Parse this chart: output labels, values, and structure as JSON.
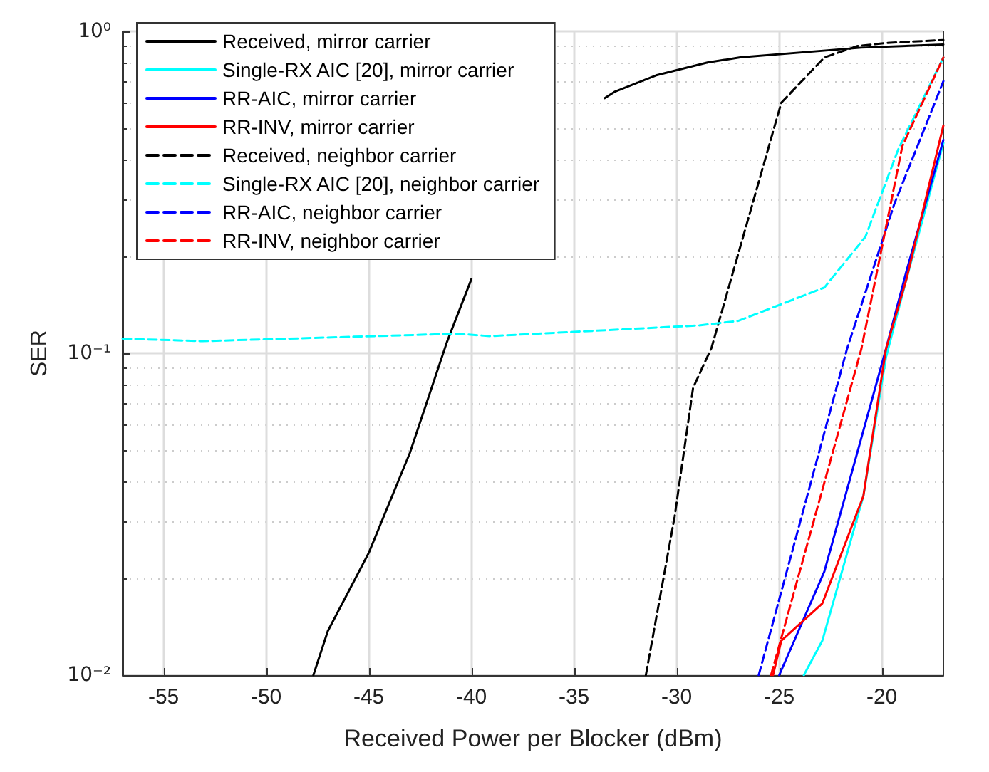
{
  "chart_data": {
    "type": "line",
    "xlabel": "Received Power per Blocker (dBm)",
    "ylabel": "SER",
    "xlim": [
      -57,
      -17
    ],
    "xticks": [
      -55,
      -50,
      -45,
      -40,
      -35,
      -30,
      -25,
      -20
    ],
    "ylim": [
      0.01,
      1
    ],
    "yticks": [
      {
        "value": 0.01,
        "label": "10⁻²"
      },
      {
        "value": 0.1,
        "label": "10⁻¹"
      },
      {
        "value": 1,
        "label": "10⁰"
      }
    ],
    "log": "y",
    "grid": true,
    "legend": "top left",
    "marker": "none",
    "series": [
      {
        "name": "Received, mirror carrier",
        "color": "#000000",
        "line_style": "solid",
        "x": [
          -47.7,
          -47,
          -45,
          -43,
          -41.2,
          -40,
          -38,
          -36,
          -33.5,
          -33,
          -31,
          -28.5,
          -26.9,
          -21,
          -17
        ],
        "values": [
          0.01,
          0.0137,
          0.024,
          0.049,
          0.108,
          0.17,
          null,
          null,
          0.62,
          0.65,
          0.73,
          0.8,
          0.83,
          0.89,
          0.91
        ]
      },
      {
        "name": "Single-RX AIC [20], mirror carrier",
        "color": "#00ffff",
        "line_style": "solid",
        "x": [
          -23.8,
          -22.9,
          -20.9,
          -19.8,
          -18.8,
          -17
        ],
        "values": [
          0.01,
          0.0128,
          0.036,
          0.097,
          0.17,
          0.45
        ]
      },
      {
        "name": "RR-AIC, mirror carrier",
        "color": "#0000ff",
        "line_style": "solid",
        "x": [
          -25,
          -22.8,
          -19.8,
          -18.8,
          -17
        ],
        "values": [
          0.01,
          0.021,
          0.103,
          0.18,
          0.46
        ]
      },
      {
        "name": "RR-INV, mirror carrier",
        "color": "#ff0000",
        "line_style": "solid",
        "x": [
          -25.3,
          -24.9,
          -22.9,
          -20.9,
          -19.8,
          -18.8,
          -17
        ],
        "values": [
          0.01,
          0.0128,
          0.0167,
          0.036,
          0.103,
          0.17,
          0.51
        ]
      },
      {
        "name": "Received, neighbor carrier",
        "color": "#000000",
        "line_style": "dashed",
        "x": [
          -31.5,
          -30.1,
          -29.2,
          -28.3,
          -24.9,
          -22.8,
          -21.2,
          -19.8,
          -17
        ],
        "values": [
          0.01,
          0.031,
          0.078,
          0.104,
          0.6,
          0.83,
          0.9,
          0.92,
          0.94
        ]
      },
      {
        "name": "Single-RX AIC [20], neighbor carrier",
        "color": "#00ffff",
        "line_style": "dashed",
        "x": [
          -57,
          -53.1,
          -40.7,
          -39.1,
          -28.9,
          -27,
          -22.8,
          -20.8,
          -19.2,
          -17
        ],
        "values": [
          0.111,
          0.109,
          0.115,
          0.113,
          0.122,
          0.126,
          0.16,
          0.23,
          0.43,
          0.83
        ]
      },
      {
        "name": "RR-AIC, neighbor carrier",
        "color": "#0000ff",
        "line_style": "dashed",
        "x": [
          -26,
          -21.7,
          -19.4,
          -17
        ],
        "values": [
          0.01,
          0.103,
          0.29,
          0.7
        ]
      },
      {
        "name": "RR-INV, neighbor carrier",
        "color": "#ff0000",
        "line_style": "dashed",
        "x": [
          -25.4,
          -21,
          -19,
          -17
        ],
        "values": [
          0.01,
          0.103,
          0.44,
          0.83
        ]
      }
    ]
  }
}
